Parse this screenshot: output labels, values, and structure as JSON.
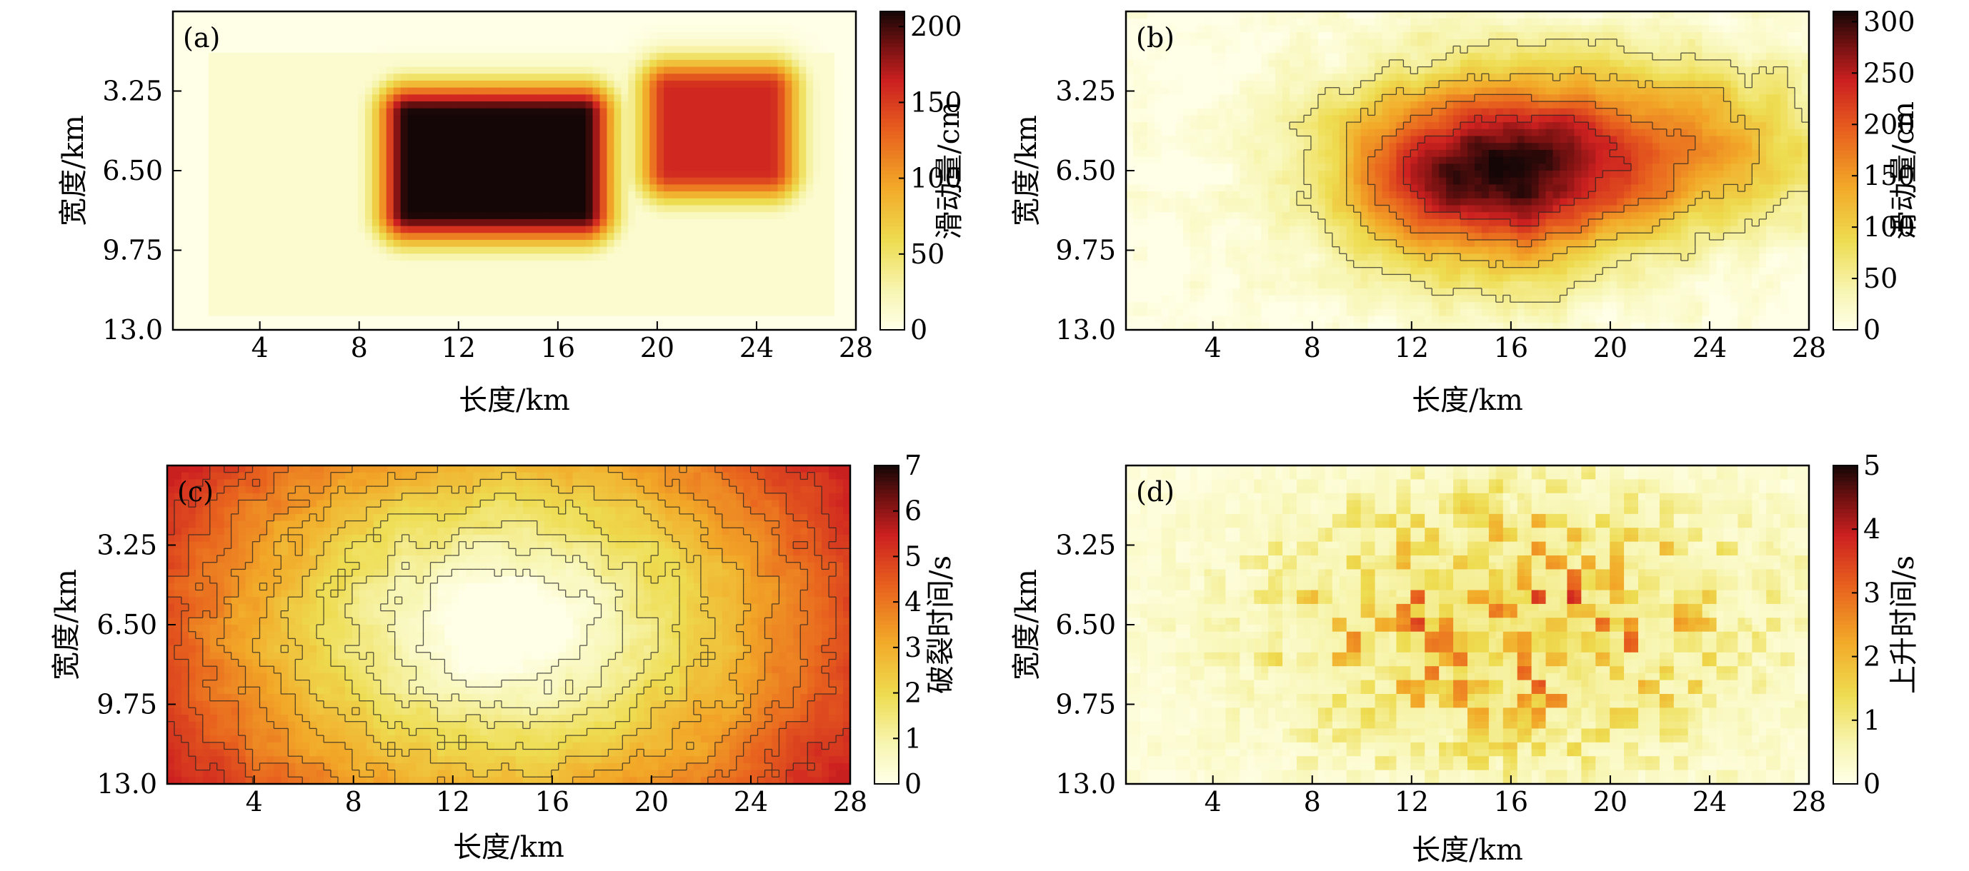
{
  "figure": {
    "panels": [
      {
        "id": "a",
        "label": "(a)",
        "x_title": "长度/km",
        "y_title": "宽度/km",
        "x_ticks": [
          "4",
          "8",
          "12",
          "16",
          "20",
          "24",
          "28"
        ],
        "y_ticks": [
          "3.25",
          "6.50",
          "9.75",
          "13.0"
        ],
        "colorbar_title": "滑动量/cm",
        "colorbar_ticks": [
          "0",
          "50",
          "100",
          "150",
          "200"
        ]
      },
      {
        "id": "b",
        "label": "(b)",
        "x_title": "长度/km",
        "y_title": "宽度/km",
        "x_ticks": [
          "4",
          "8",
          "12",
          "16",
          "20",
          "24",
          "28"
        ],
        "y_ticks": [
          "3.25",
          "6.50",
          "9.75",
          "13.0"
        ],
        "colorbar_title": "滑动量/cm",
        "colorbar_ticks": [
          "0",
          "50",
          "100",
          "150",
          "200",
          "250",
          "300"
        ]
      },
      {
        "id": "c",
        "label": "(c)",
        "x_title": "长度/km",
        "y_title": "宽度/km",
        "x_ticks": [
          "4",
          "8",
          "12",
          "16",
          "20",
          "24",
          "28"
        ],
        "y_ticks": [
          "3.25",
          "6.50",
          "9.75",
          "13.0"
        ],
        "colorbar_title": "破裂时间/s",
        "colorbar_ticks": [
          "0",
          "1",
          "2",
          "3",
          "4",
          "5",
          "6",
          "7"
        ]
      },
      {
        "id": "d",
        "label": "(d)",
        "x_title": "长度/km",
        "y_title": "宽度/km",
        "x_ticks": [
          "4",
          "8",
          "12",
          "16",
          "20",
          "24",
          "28"
        ],
        "y_ticks": [
          "3.25",
          "6.50",
          "9.75",
          "13.0"
        ],
        "colorbar_title": "上升时间/s",
        "colorbar_ticks": [
          "0",
          "1",
          "2",
          "3",
          "4",
          "5"
        ]
      }
    ]
  },
  "chart_data": [
    {
      "type": "heatmap",
      "panel": "(a)",
      "xlabel": "长度/km",
      "ylabel": "宽度/km",
      "xlim": [
        0.5,
        28
      ],
      "ylim": [
        13.0,
        0
      ],
      "x_ticks": [
        4,
        8,
        12,
        16,
        20,
        24,
        28
      ],
      "y_ticks": [
        3.25,
        6.5,
        9.75,
        13.0
      ],
      "colorbar": {
        "label": "滑动量/cm",
        "range": [
          0,
          210
        ],
        "ticks": [
          0,
          50,
          100,
          150,
          200
        ]
      },
      "colormap": "hot_r",
      "asperities": [
        {
          "x_range": [
            10,
            17
          ],
          "y_range": [
            4.2,
            8.2
          ],
          "slip": 210
        },
        {
          "x_range": [
            20.5,
            24.5
          ],
          "y_range": [
            3.2,
            6.5
          ],
          "slip": 160
        }
      ],
      "background_slip": 5
    },
    {
      "type": "heatmap",
      "panel": "(b)",
      "xlabel": "长度/km",
      "ylabel": "宽度/km",
      "xlim": [
        0.5,
        28
      ],
      "ylim": [
        13.0,
        0
      ],
      "x_ticks": [
        4,
        8,
        12,
        16,
        20,
        24,
        28
      ],
      "y_ticks": [
        3.25,
        6.5,
        9.75,
        13.0
      ],
      "colorbar": {
        "label": "滑动量/cm",
        "range": [
          0,
          310
        ],
        "ticks": [
          0,
          50,
          100,
          150,
          200,
          250,
          300
        ]
      },
      "colormap": "hot_r",
      "contours": true,
      "peak": {
        "x": 15,
        "y": 6.6,
        "slip": 290
      },
      "secondary_high": {
        "x": 23,
        "y": 5.5,
        "slip": 130
      }
    },
    {
      "type": "heatmap",
      "panel": "(c)",
      "xlabel": "长度/km",
      "ylabel": "宽度/km",
      "xlim": [
        0.5,
        28
      ],
      "ylim": [
        13.0,
        0
      ],
      "x_ticks": [
        4,
        8,
        12,
        16,
        20,
        24,
        28
      ],
      "y_ticks": [
        3.25,
        6.5,
        9.75,
        13.0
      ],
      "colorbar": {
        "label": "破裂时间/s",
        "range": [
          0,
          7
        ],
        "ticks": [
          0,
          1,
          2,
          3,
          4,
          5,
          6,
          7
        ]
      },
      "colormap": "hot_r",
      "contours": true,
      "hypocenter": {
        "x": 14,
        "y": 6.5,
        "time": 0
      },
      "max_time": 5.5
    },
    {
      "type": "heatmap",
      "panel": "(d)",
      "xlabel": "长度/km",
      "ylabel": "宽度/km",
      "xlim": [
        0.5,
        28
      ],
      "ylim": [
        13.0,
        0
      ],
      "x_ticks": [
        4,
        8,
        12,
        16,
        20,
        24,
        28
      ],
      "y_ticks": [
        3.25,
        6.5,
        9.75,
        13.0
      ],
      "colorbar": {
        "label": "上升时间/s",
        "range": [
          0,
          5
        ],
        "ticks": [
          0,
          1,
          2,
          3,
          4,
          5
        ]
      },
      "colormap": "hot_r",
      "center": {
        "x": 16,
        "y": 6.5
      },
      "max_rise_time": 4
    }
  ]
}
